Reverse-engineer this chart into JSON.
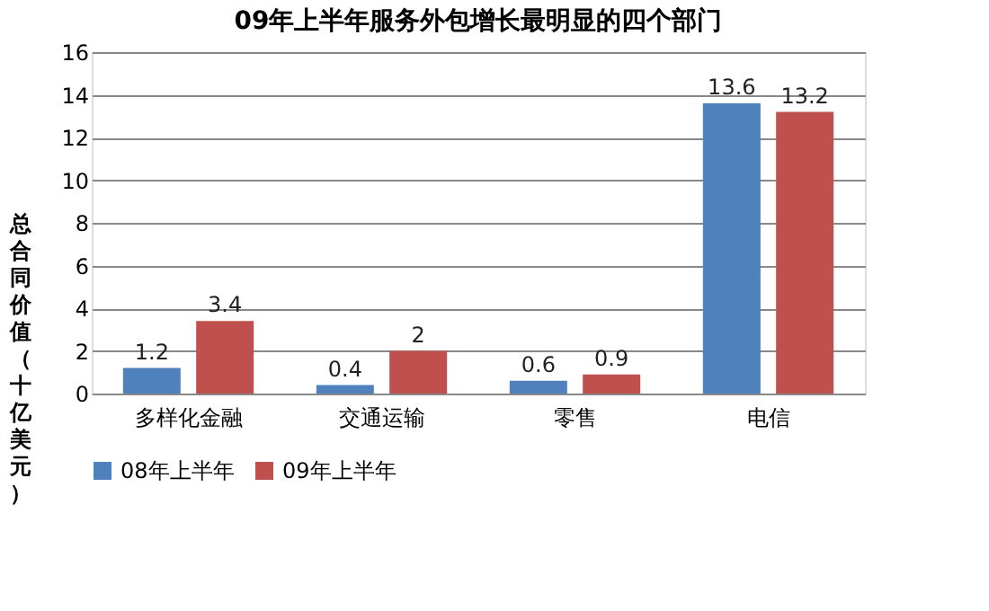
{
  "chart_data": {
    "type": "bar",
    "title": "09年上半年服务外包增长最明显的四个部门",
    "ylabel": "总合同价值（十亿美元）",
    "categories": [
      "多样化金融",
      "交通运输",
      "零售",
      "电信"
    ],
    "series": [
      {
        "name": "08年上半年",
        "color": "#4f81bd",
        "values": [
          1.2,
          0.4,
          0.6,
          13.6
        ]
      },
      {
        "name": "09年上半年",
        "color": "#c0504d",
        "values": [
          3.4,
          2,
          0.9,
          13.2
        ]
      }
    ],
    "ylim": [
      0,
      16
    ],
    "yticks": [
      0,
      2,
      4,
      6,
      8,
      10,
      12,
      14,
      16
    ],
    "grid": "y",
    "legend": "bottom",
    "data_labels": true
  }
}
